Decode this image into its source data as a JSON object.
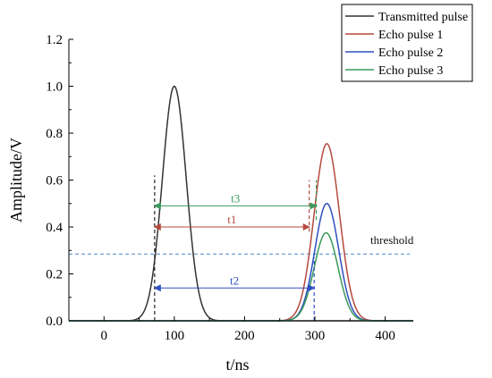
{
  "chart_data": {
    "type": "line",
    "xlabel": "t/ns",
    "ylabel": "Amplitude/V",
    "xlim": [
      -50,
      440
    ],
    "ylim": [
      0.0,
      1.2
    ],
    "x_ticks": [
      0,
      100,
      200,
      300,
      400
    ],
    "y_ticks": [
      0.0,
      0.2,
      0.4,
      0.6,
      0.8,
      1.0,
      1.2
    ],
    "x_tick_labels": [
      "0",
      "100",
      "200",
      "300",
      "400"
    ],
    "y_tick_labels": [
      "0.0",
      "0.2",
      "0.4",
      "0.6",
      "0.8",
      "1.0",
      "1.2"
    ],
    "grid": false,
    "legend_position": "top-right",
    "series": [
      {
        "name": "Transmitted pulse",
        "color": "#333333",
        "peak_x": 100,
        "peak_y": 1.0,
        "sigma_ns": 17
      },
      {
        "name": "Echo pulse 1",
        "color": "#b5493e",
        "peak_x": 317,
        "peak_y": 0.755,
        "sigma_ns": 18
      },
      {
        "name": "Echo pulse 2",
        "color": "#2e4fbf",
        "peak_x": 317,
        "peak_y": 0.5,
        "sigma_ns": 17
      },
      {
        "name": "Echo pulse 3",
        "color": "#3a9a5a",
        "peak_x": 316,
        "peak_y": 0.375,
        "sigma_ns": 17
      }
    ],
    "threshold": {
      "label": "threshold",
      "y": 0.285,
      "color": "#4a86c8"
    },
    "markers": [
      {
        "x": 72,
        "y_from": 0.0,
        "y_to": 0.62,
        "color": "#222222"
      },
      {
        "x": 292,
        "y_from": 0.38,
        "y_to": 0.6,
        "color": "#b5493e"
      },
      {
        "x": 299,
        "y_from": 0.0,
        "y_to": 0.27,
        "color": "#2e4fbf"
      },
      {
        "x": 302,
        "y_from": 0.43,
        "y_to": 0.6,
        "color": "#3a9a5a"
      }
    ],
    "intervals": [
      {
        "label": "t3",
        "x_from": 72,
        "x_to": 302,
        "y": 0.49,
        "color": "#3a9a5a"
      },
      {
        "label": "t1",
        "x_from": 72,
        "x_to": 292,
        "y": 0.4,
        "color": "#b5493e"
      },
      {
        "label": "t2",
        "x_from": 72,
        "x_to": 299,
        "y": 0.14,
        "color": "#2e4fbf"
      }
    ]
  }
}
